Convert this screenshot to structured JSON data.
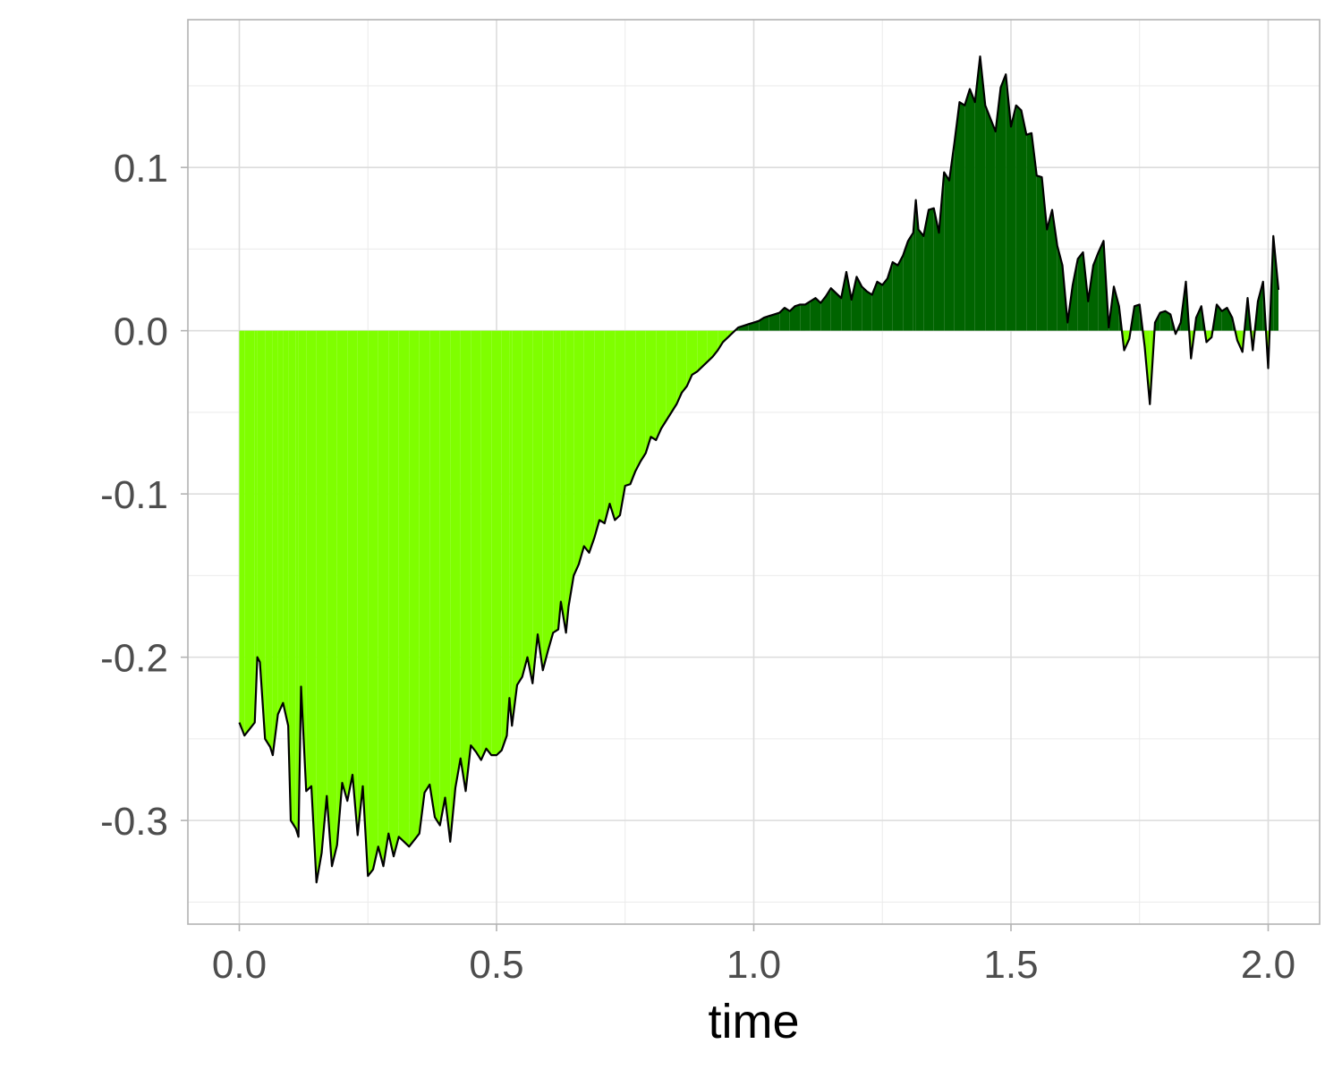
{
  "chart_data": {
    "type": "area",
    "title": "",
    "xlabel": "time",
    "ylabel": "",
    "xlim": [
      -0.1,
      2.1
    ],
    "ylim": [
      -0.3635,
      0.1905
    ],
    "x_ticks": [
      0.0,
      0.5,
      1.0,
      1.5,
      2.0
    ],
    "x_tick_labels": [
      "0.0",
      "0.5",
      "1.0",
      "1.5",
      "2.0"
    ],
    "y_ticks": [
      0.1,
      0.0,
      -0.1,
      -0.2,
      -0.3
    ],
    "y_tick_labels": [
      "0.1",
      "0.0",
      "-0.1",
      "-0.2",
      "-0.3"
    ],
    "grid": true,
    "legend": "none",
    "fill_positive_color": "#006400",
    "fill_negative_color": "#7FFF00",
    "line_color": "#000000",
    "background": "#FFFFFF",
    "series": [
      {
        "points": [
          [
            0.0,
            -0.24
          ],
          [
            0.01,
            -0.248
          ],
          [
            0.02,
            -0.244
          ],
          [
            0.03,
            -0.24
          ],
          [
            0.035,
            -0.2
          ],
          [
            0.04,
            -0.203
          ],
          [
            0.05,
            -0.25
          ],
          [
            0.06,
            -0.255
          ],
          [
            0.065,
            -0.26
          ],
          [
            0.075,
            -0.235
          ],
          [
            0.085,
            -0.228
          ],
          [
            0.095,
            -0.242
          ],
          [
            0.1,
            -0.3
          ],
          [
            0.11,
            -0.305
          ],
          [
            0.115,
            -0.31
          ],
          [
            0.12,
            -0.218
          ],
          [
            0.13,
            -0.282
          ],
          [
            0.14,
            -0.279
          ],
          [
            0.15,
            -0.338
          ],
          [
            0.16,
            -0.32
          ],
          [
            0.17,
            -0.285
          ],
          [
            0.18,
            -0.328
          ],
          [
            0.19,
            -0.315
          ],
          [
            0.2,
            -0.277
          ],
          [
            0.21,
            -0.288
          ],
          [
            0.22,
            -0.272
          ],
          [
            0.23,
            -0.309
          ],
          [
            0.24,
            -0.279
          ],
          [
            0.25,
            -0.334
          ],
          [
            0.26,
            -0.33
          ],
          [
            0.27,
            -0.316
          ],
          [
            0.28,
            -0.328
          ],
          [
            0.29,
            -0.308
          ],
          [
            0.3,
            -0.322
          ],
          [
            0.31,
            -0.31
          ],
          [
            0.32,
            -0.313
          ],
          [
            0.33,
            -0.316
          ],
          [
            0.34,
            -0.312
          ],
          [
            0.35,
            -0.308
          ],
          [
            0.36,
            -0.283
          ],
          [
            0.37,
            -0.278
          ],
          [
            0.38,
            -0.298
          ],
          [
            0.39,
            -0.303
          ],
          [
            0.4,
            -0.286
          ],
          [
            0.41,
            -0.313
          ],
          [
            0.42,
            -0.28
          ],
          [
            0.43,
            -0.262
          ],
          [
            0.44,
            -0.282
          ],
          [
            0.45,
            -0.254
          ],
          [
            0.46,
            -0.258
          ],
          [
            0.47,
            -0.263
          ],
          [
            0.48,
            -0.256
          ],
          [
            0.49,
            -0.26
          ],
          [
            0.5,
            -0.26
          ],
          [
            0.51,
            -0.257
          ],
          [
            0.52,
            -0.248
          ],
          [
            0.525,
            -0.225
          ],
          [
            0.53,
            -0.242
          ],
          [
            0.54,
            -0.217
          ],
          [
            0.55,
            -0.212
          ],
          [
            0.56,
            -0.2
          ],
          [
            0.57,
            -0.216
          ],
          [
            0.58,
            -0.186
          ],
          [
            0.59,
            -0.208
          ],
          [
            0.6,
            -0.196
          ],
          [
            0.61,
            -0.185
          ],
          [
            0.62,
            -0.183
          ],
          [
            0.625,
            -0.166
          ],
          [
            0.635,
            -0.185
          ],
          [
            0.64,
            -0.169
          ],
          [
            0.65,
            -0.15
          ],
          [
            0.66,
            -0.143
          ],
          [
            0.67,
            -0.132
          ],
          [
            0.68,
            -0.136
          ],
          [
            0.69,
            -0.127
          ],
          [
            0.7,
            -0.116
          ],
          [
            0.71,
            -0.118
          ],
          [
            0.72,
            -0.106
          ],
          [
            0.73,
            -0.116
          ],
          [
            0.74,
            -0.113
          ],
          [
            0.75,
            -0.095
          ],
          [
            0.76,
            -0.094
          ],
          [
            0.77,
            -0.086
          ],
          [
            0.78,
            -0.08
          ],
          [
            0.79,
            -0.075
          ],
          [
            0.8,
            -0.065
          ],
          [
            0.81,
            -0.067
          ],
          [
            0.82,
            -0.06
          ],
          [
            0.83,
            -0.055
          ],
          [
            0.84,
            -0.05
          ],
          [
            0.85,
            -0.045
          ],
          [
            0.86,
            -0.038
          ],
          [
            0.87,
            -0.034
          ],
          [
            0.88,
            -0.027
          ],
          [
            0.89,
            -0.025
          ],
          [
            0.9,
            -0.022
          ],
          [
            0.91,
            -0.019
          ],
          [
            0.92,
            -0.016
          ],
          [
            0.93,
            -0.012
          ],
          [
            0.94,
            -0.007
          ],
          [
            0.95,
            -0.004
          ],
          [
            0.96,
            -0.001
          ],
          [
            0.97,
            0.002
          ],
          [
            0.98,
            0.003
          ],
          [
            0.99,
            0.004
          ],
          [
            1.0,
            0.005
          ],
          [
            1.01,
            0.006
          ],
          [
            1.02,
            0.008
          ],
          [
            1.03,
            0.009
          ],
          [
            1.04,
            0.01
          ],
          [
            1.05,
            0.011
          ],
          [
            1.06,
            0.014
          ],
          [
            1.07,
            0.012
          ],
          [
            1.08,
            0.015
          ],
          [
            1.09,
            0.016
          ],
          [
            1.1,
            0.016
          ],
          [
            1.11,
            0.018
          ],
          [
            1.12,
            0.02
          ],
          [
            1.13,
            0.017
          ],
          [
            1.14,
            0.021
          ],
          [
            1.15,
            0.026
          ],
          [
            1.16,
            0.023
          ],
          [
            1.17,
            0.02
          ],
          [
            1.18,
            0.036
          ],
          [
            1.19,
            0.019
          ],
          [
            1.2,
            0.033
          ],
          [
            1.21,
            0.027
          ],
          [
            1.22,
            0.024
          ],
          [
            1.23,
            0.022
          ],
          [
            1.24,
            0.03
          ],
          [
            1.25,
            0.028
          ],
          [
            1.26,
            0.032
          ],
          [
            1.27,
            0.042
          ],
          [
            1.28,
            0.04
          ],
          [
            1.29,
            0.046
          ],
          [
            1.3,
            0.055
          ],
          [
            1.31,
            0.06
          ],
          [
            1.315,
            0.08
          ],
          [
            1.32,
            0.062
          ],
          [
            1.33,
            0.058
          ],
          [
            1.34,
            0.074
          ],
          [
            1.35,
            0.075
          ],
          [
            1.36,
            0.06
          ],
          [
            1.37,
            0.097
          ],
          [
            1.38,
            0.092
          ],
          [
            1.39,
            0.115
          ],
          [
            1.4,
            0.14
          ],
          [
            1.41,
            0.138
          ],
          [
            1.42,
            0.148
          ],
          [
            1.43,
            0.14
          ],
          [
            1.44,
            0.168
          ],
          [
            1.45,
            0.138
          ],
          [
            1.46,
            0.13
          ],
          [
            1.47,
            0.122
          ],
          [
            1.48,
            0.149
          ],
          [
            1.49,
            0.157
          ],
          [
            1.5,
            0.125
          ],
          [
            1.51,
            0.138
          ],
          [
            1.52,
            0.135
          ],
          [
            1.53,
            0.12
          ],
          [
            1.54,
            0.121
          ],
          [
            1.55,
            0.095
          ],
          [
            1.56,
            0.094
          ],
          [
            1.57,
            0.062
          ],
          [
            1.58,
            0.074
          ],
          [
            1.59,
            0.052
          ],
          [
            1.6,
            0.04
          ],
          [
            1.61,
            0.005
          ],
          [
            1.62,
            0.028
          ],
          [
            1.63,
            0.044
          ],
          [
            1.64,
            0.048
          ],
          [
            1.65,
            0.018
          ],
          [
            1.66,
            0.04
          ],
          [
            1.67,
            0.048
          ],
          [
            1.68,
            0.055
          ],
          [
            1.69,
            0.002
          ],
          [
            1.7,
            0.027
          ],
          [
            1.71,
            0.015
          ],
          [
            1.72,
            -0.012
          ],
          [
            1.73,
            -0.005
          ],
          [
            1.74,
            0.015
          ],
          [
            1.75,
            0.016
          ],
          [
            1.76,
            -0.01
          ],
          [
            1.77,
            -0.045
          ],
          [
            1.78,
            0.005
          ],
          [
            1.79,
            0.011
          ],
          [
            1.8,
            0.012
          ],
          [
            1.81,
            0.01
          ],
          [
            1.82,
            -0.002
          ],
          [
            1.83,
            0.005
          ],
          [
            1.84,
            0.03
          ],
          [
            1.85,
            -0.017
          ],
          [
            1.86,
            0.008
          ],
          [
            1.87,
            0.015
          ],
          [
            1.88,
            -0.007
          ],
          [
            1.89,
            -0.004
          ],
          [
            1.9,
            0.016
          ],
          [
            1.91,
            0.012
          ],
          [
            1.92,
            0.014
          ],
          [
            1.93,
            0.008
          ],
          [
            1.94,
            -0.006
          ],
          [
            1.95,
            -0.013
          ],
          [
            1.96,
            0.02
          ],
          [
            1.97,
            -0.012
          ],
          [
            1.98,
            0.018
          ],
          [
            1.99,
            0.03
          ],
          [
            2.0,
            -0.023
          ],
          [
            2.01,
            0.058
          ],
          [
            2.02,
            0.025
          ]
        ]
      }
    ]
  }
}
